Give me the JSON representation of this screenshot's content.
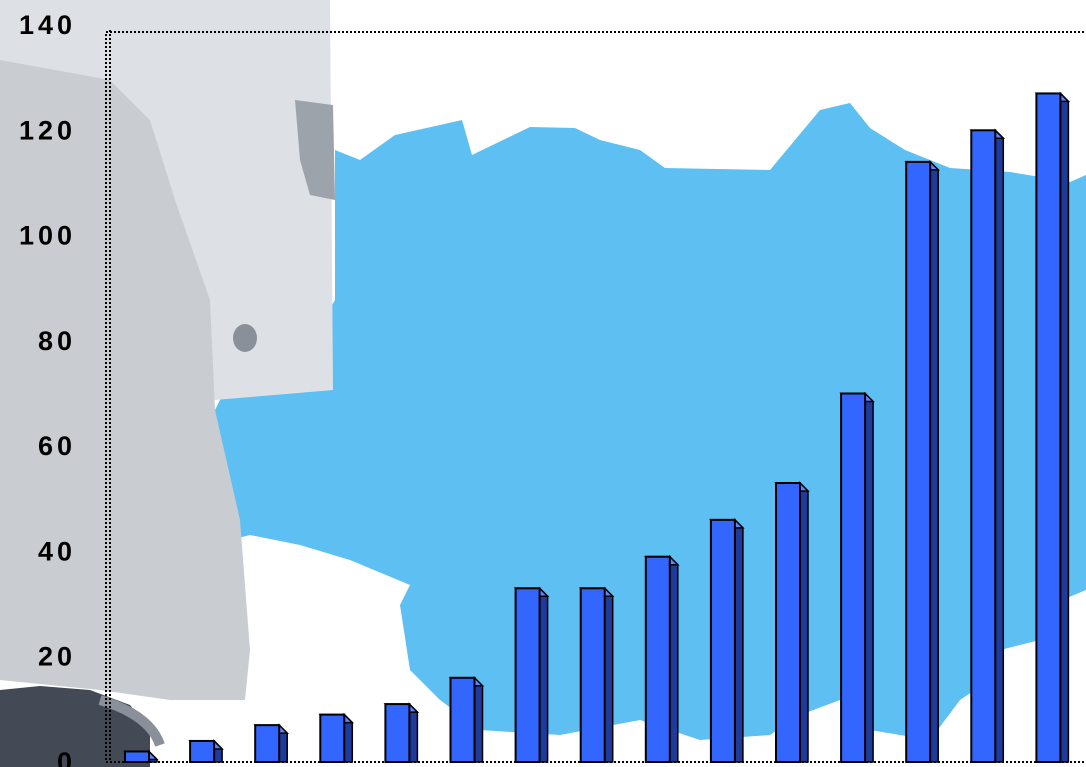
{
  "chart_data": {
    "type": "bar",
    "title": "",
    "xlabel": "",
    "ylabel": "",
    "ylim": [
      0,
      140
    ],
    "y_ticks": [
      "0",
      "20",
      "40",
      "60",
      "80",
      "100",
      "120",
      "140"
    ],
    "values": [
      2,
      4,
      7,
      9,
      11,
      16,
      33,
      33,
      39,
      46,
      53,
      70,
      114,
      120,
      127
    ],
    "grid": false,
    "legend": "none",
    "bar_style": "3d",
    "colors": {
      "bar_front": "#3366ff",
      "bar_side": "#1f3a99",
      "bar_top": "#5c86ff",
      "bar_outline": "#000000",
      "background_map": "#5ebff2",
      "background_figure": "#c9ccd1",
      "background_figure_dark": "#434a55",
      "plot_frame": "#000000"
    }
  }
}
